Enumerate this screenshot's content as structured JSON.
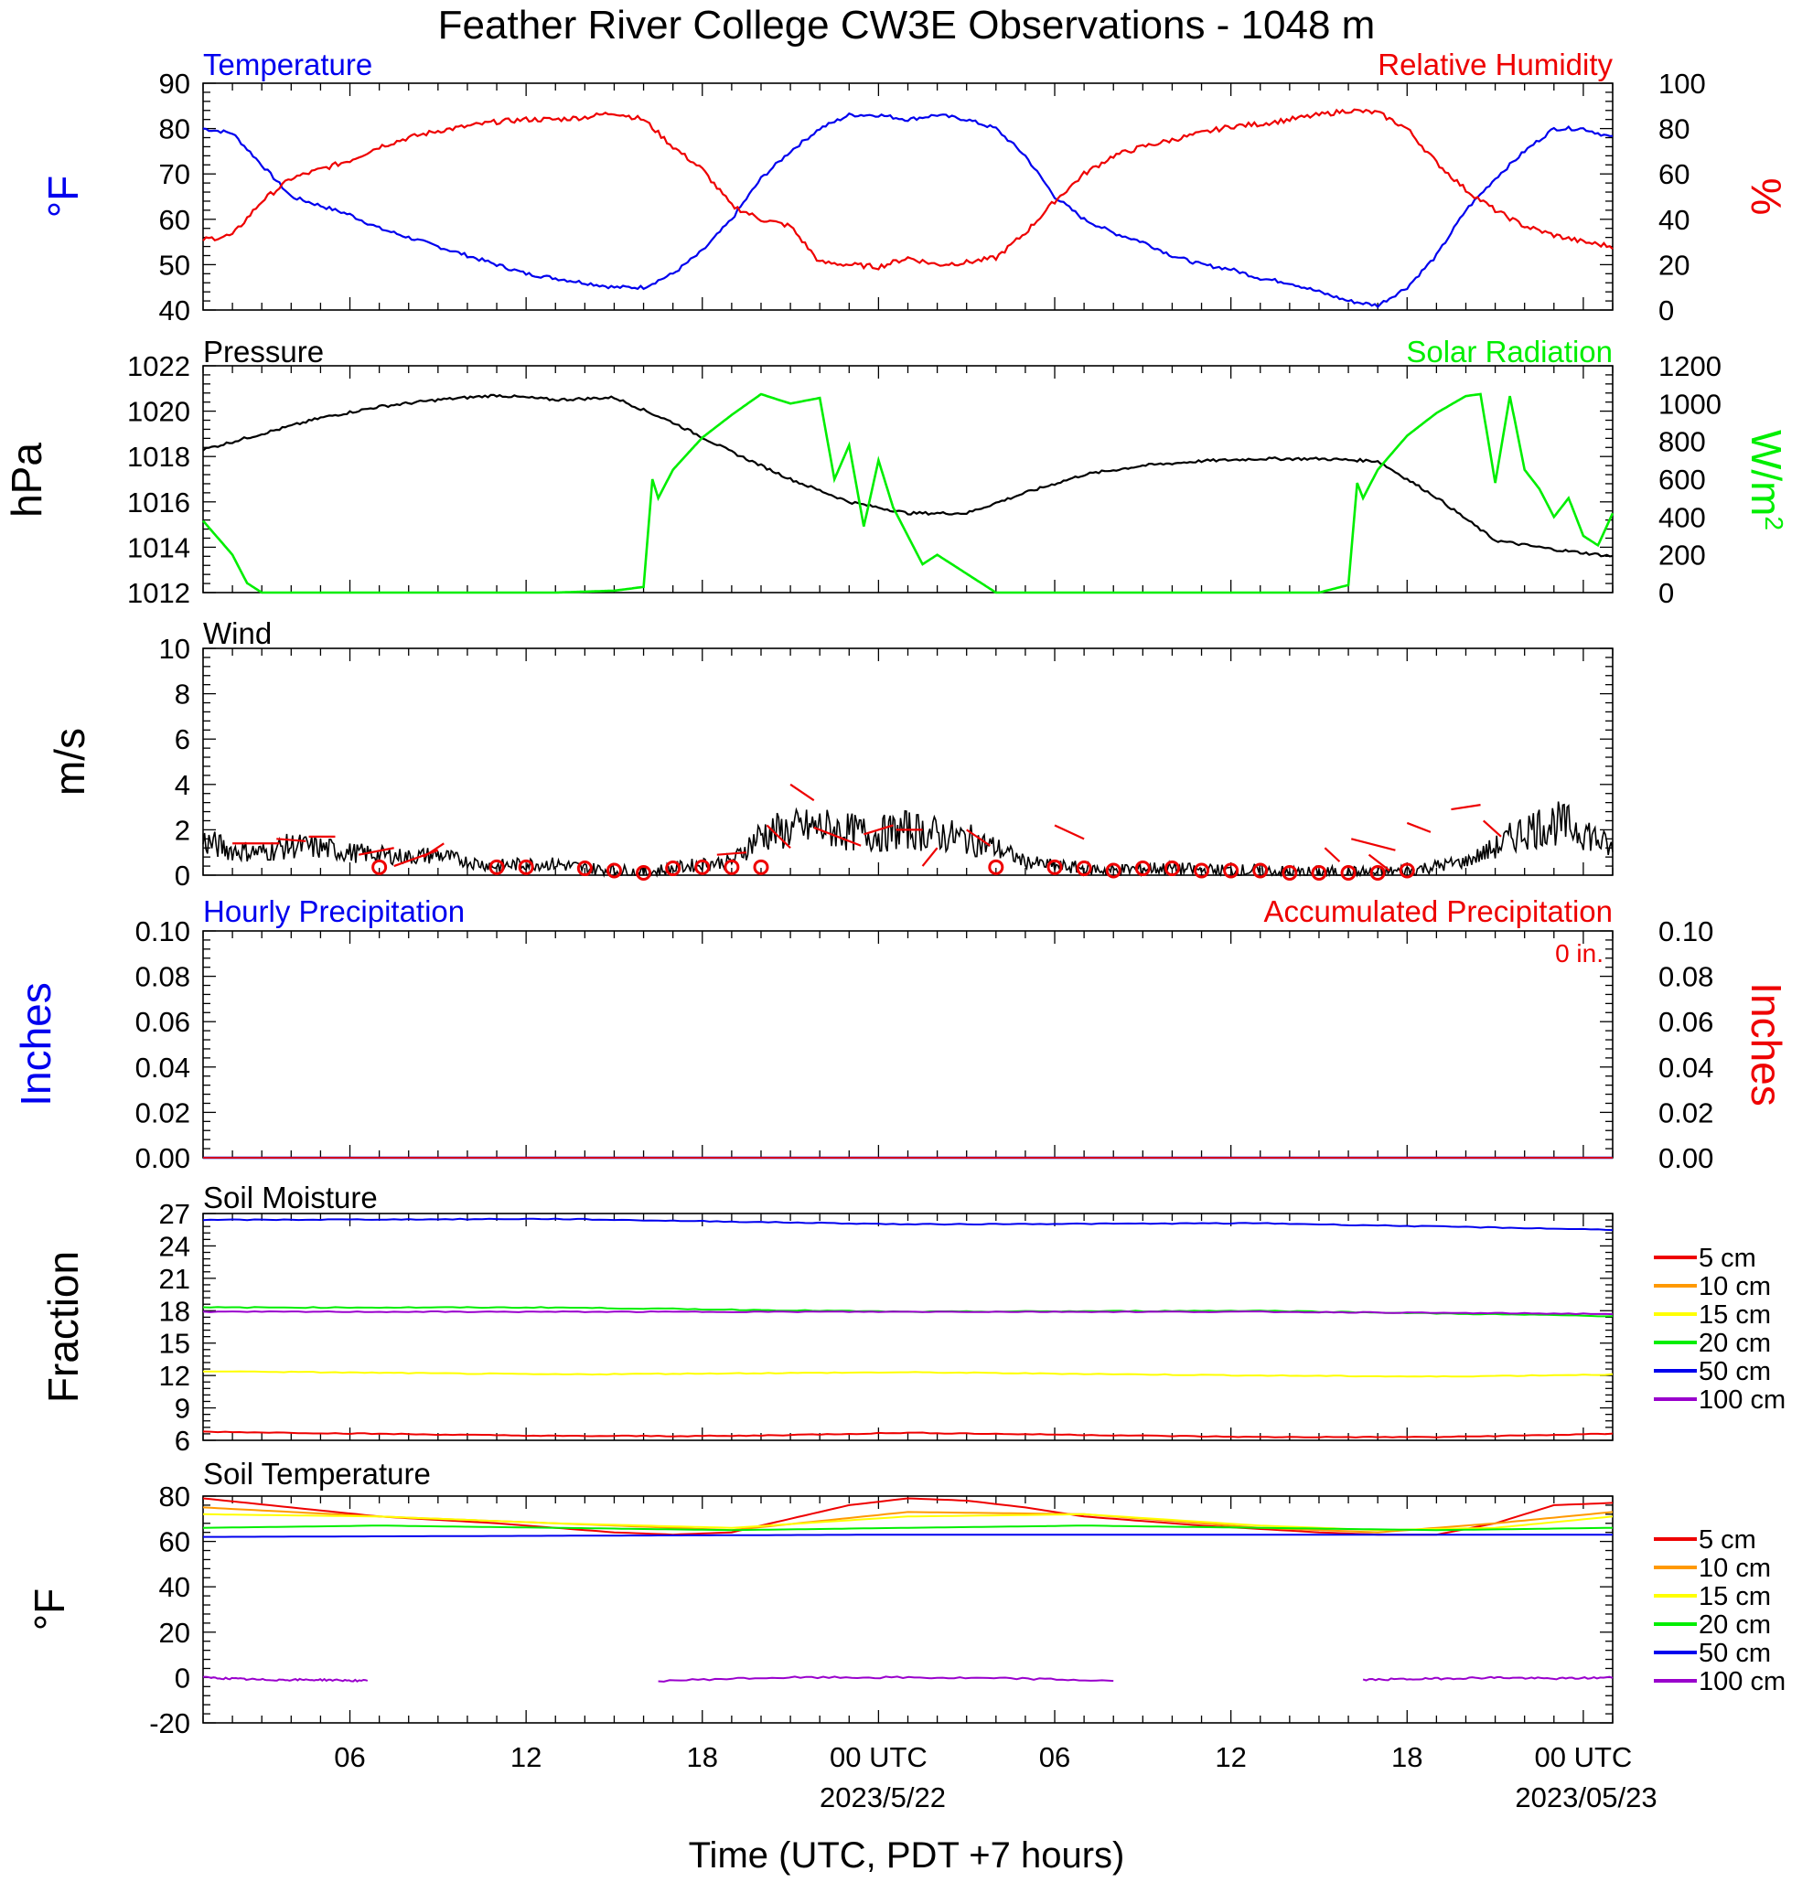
{
  "title": "Feather River College CW3E Observations - 1048 m",
  "colors": {
    "blue": "#0000ee",
    "red": "#ee0000",
    "green": "#00ee00",
    "black": "#000000",
    "soil": [
      "#ee0000",
      "#ff9900",
      "#ffff00",
      "#00ee00",
      "#0000ee",
      "#9900cc"
    ]
  },
  "x_axis": {
    "title": "Time (UTC, PDT +7 hours)",
    "tick_labels": [
      "06",
      "12",
      "18",
      "00 UTC",
      "06",
      "12",
      "18",
      "00 UTC"
    ],
    "date_labels": [
      "2023/5/22",
      "2023/05/23"
    ]
  },
  "panels": {
    "temp_rh": {
      "left_label": "Temperature",
      "right_label": "Relative Humidity",
      "left_unit": "oF",
      "right_unit": "%",
      "left_ticks": [
        "90",
        "80",
        "70",
        "60",
        "50",
        "40"
      ],
      "right_ticks": [
        "100",
        "80",
        "60",
        "40",
        "20",
        "0"
      ]
    },
    "pressure": {
      "left_label": "Pressure",
      "right_label": "Solar Radiation",
      "left_unit": "hPa",
      "right_unit": "W/m2",
      "left_ticks": [
        "1022",
        "1020",
        "1018",
        "1016",
        "1014",
        "1012"
      ],
      "right_ticks": [
        "1200",
        "1000",
        "800",
        "600",
        "400",
        "200",
        "0"
      ]
    },
    "wind": {
      "left_label": "Wind",
      "left_unit": "m/s",
      "left_ticks": [
        "10",
        "8",
        "6",
        "4",
        "2",
        "0"
      ]
    },
    "precip": {
      "left_label": "Hourly Precipitation",
      "right_label": "Accumulated Precipitation",
      "accum_value": "0 in.",
      "left_unit": "Inches",
      "right_unit": "Inches",
      "left_ticks": [
        "0.10",
        "0.08",
        "0.06",
        "0.04",
        "0.02",
        "0.00"
      ],
      "right_ticks": [
        "0.10",
        "0.08",
        "0.06",
        "0.04",
        "0.02",
        "0.00"
      ]
    },
    "soil_moisture": {
      "left_label": "Soil Moisture",
      "left_unit": "Fraction",
      "left_ticks": [
        "27",
        "24",
        "21",
        "18",
        "15",
        "12",
        "9",
        "6"
      ],
      "legend": [
        "5 cm",
        "10 cm",
        "15 cm",
        "20 cm",
        "50 cm",
        "100 cm"
      ]
    },
    "soil_temp": {
      "left_label": "Soil Temperature",
      "left_unit": "oF",
      "left_ticks": [
        "80",
        "60",
        "40",
        "20",
        "0",
        "-20"
      ],
      "legend": [
        "5 cm",
        "10 cm",
        "15 cm",
        "20 cm",
        "50 cm",
        "100 cm"
      ]
    }
  },
  "chart_data": [
    {
      "type": "line",
      "x_unit": "hours since 2023-05-21 01 UTC",
      "xlim": [
        0,
        48
      ],
      "ylim_left": [
        40,
        90
      ],
      "ylim_right": [
        0,
        100
      ],
      "series": [
        {
          "name": "Temperature",
          "axis": "left",
          "x": [
            0,
            1,
            2,
            3,
            4,
            5,
            6,
            7,
            8,
            9,
            10,
            11,
            12,
            13,
            14,
            15,
            16,
            17,
            18,
            19,
            20,
            21,
            22,
            23,
            24,
            25,
            26,
            27,
            28,
            29,
            30,
            31,
            32,
            33,
            34,
            35,
            36,
            37,
            38,
            39,
            40,
            41,
            42,
            43,
            44,
            45,
            46,
            47,
            48
          ],
          "values": [
            80,
            79,
            72,
            65,
            63,
            61,
            58,
            56,
            54,
            52,
            50,
            48,
            47,
            46,
            45,
            45,
            48,
            53,
            60,
            69,
            75,
            80,
            83,
            83,
            82,
            83,
            82,
            80,
            74,
            65,
            60,
            57,
            55,
            52,
            50,
            49,
            47,
            46,
            44,
            42,
            41,
            45,
            52,
            62,
            69,
            75,
            80,
            80,
            78
          ]
        },
        {
          "name": "Relative Humidity",
          "axis": "right",
          "x": [
            0,
            1,
            2,
            3,
            4,
            5,
            6,
            7,
            8,
            9,
            10,
            11,
            12,
            13,
            14,
            15,
            16,
            17,
            18,
            19,
            20,
            21,
            22,
            23,
            24,
            25,
            26,
            27,
            28,
            29,
            30,
            31,
            32,
            33,
            34,
            35,
            36,
            37,
            38,
            39,
            40,
            41,
            42,
            43,
            44,
            45,
            46,
            47,
            48
          ],
          "values": [
            31,
            33,
            48,
            58,
            62,
            66,
            72,
            76,
            79,
            81,
            83,
            84,
            84,
            85,
            87,
            84,
            72,
            62,
            46,
            40,
            37,
            21,
            20,
            19,
            23,
            20,
            21,
            23,
            34,
            48,
            60,
            68,
            72,
            75,
            78,
            81,
            82,
            84,
            86,
            88,
            87,
            80,
            65,
            53,
            44,
            37,
            33,
            30,
            28
          ]
        }
      ]
    },
    {
      "type": "line",
      "x_unit": "hours since 2023-05-21 01 UTC",
      "xlim": [
        0,
        48
      ],
      "ylim_left": [
        1012,
        1022
      ],
      "ylim_right": [
        0,
        1200
      ],
      "series": [
        {
          "name": "Pressure",
          "axis": "left",
          "x": [
            0,
            2,
            4,
            6,
            8,
            10,
            12,
            14,
            16,
            18,
            20,
            22,
            24,
            26,
            28,
            30,
            32,
            34,
            36,
            38,
            40,
            42,
            44,
            46,
            48
          ],
          "values": [
            1018.3,
            1019.0,
            1019.7,
            1020.2,
            1020.5,
            1020.7,
            1020.5,
            1020.6,
            1019.5,
            1018.2,
            1017.0,
            1016.0,
            1015.5,
            1015.5,
            1016.4,
            1017.2,
            1017.6,
            1017.8,
            1017.9,
            1017.9,
            1017.8,
            1016.2,
            1014.3,
            1013.9,
            1013.6
          ]
        },
        {
          "name": "Solar Radiation",
          "axis": "right",
          "x": [
            0,
            1,
            1.5,
            2,
            4,
            8,
            12,
            14,
            15,
            15.3,
            15.5,
            16,
            17,
            18,
            19,
            20,
            21,
            21.5,
            22,
            22.5,
            23,
            23.5,
            24,
            24.5,
            25,
            25.5,
            26,
            27,
            28,
            30,
            34,
            36,
            38,
            39,
            39.3,
            39.5,
            40,
            41,
            42,
            43,
            43.5,
            44,
            44.5,
            45,
            45.5,
            46,
            46.5,
            47,
            47.5,
            48
          ],
          "values": [
            380,
            200,
            50,
            0,
            0,
            0,
            0,
            10,
            30,
            600,
            500,
            650,
            820,
            940,
            1050,
            1000,
            1030,
            600,
            780,
            350,
            700,
            450,
            300,
            150,
            200,
            150,
            100,
            0,
            0,
            0,
            0,
            0,
            0,
            40,
            580,
            500,
            650,
            830,
            950,
            1040,
            1050,
            580,
            1040,
            650,
            550,
            400,
            500,
            300,
            250,
            420
          ]
        }
      ]
    },
    {
      "type": "line",
      "x_unit": "hours since 2023-05-21 01 UTC",
      "xlim": [
        0,
        48
      ],
      "ylim": [
        0,
        10
      ],
      "series": [
        {
          "name": "Wind",
          "x": [
            0,
            1,
            2,
            3,
            4,
            5,
            6,
            7,
            8,
            9,
            10,
            11,
            12,
            13,
            14,
            15,
            16,
            17,
            18,
            19,
            20,
            21,
            22,
            23,
            24,
            25,
            26,
            27,
            28,
            29,
            30,
            31,
            32,
            33,
            34,
            35,
            36,
            37,
            38,
            39,
            40,
            41,
            42,
            43,
            44,
            45,
            46,
            47,
            48
          ],
          "values": [
            1.5,
            1.1,
            1.0,
            1.3,
            1.2,
            1.0,
            0.9,
            0.8,
            0.9,
            0.6,
            0.4,
            0.5,
            0.5,
            0.3,
            0.2,
            0.1,
            0.3,
            0.5,
            0.6,
            1.8,
            2.0,
            2.1,
            1.9,
            1.8,
            2.0,
            1.8,
            1.6,
            1.2,
            0.6,
            0.4,
            0.3,
            0.2,
            0.3,
            0.3,
            0.2,
            0.2,
            0.2,
            0.1,
            0.1,
            0.1,
            0.1,
            0.2,
            0.4,
            0.6,
            1.2,
            2.0,
            2.3,
            2.0,
            1.1
          ]
        }
      ],
      "barb_hours": [
        6,
        10,
        11,
        13,
        14,
        15,
        16,
        17,
        18,
        19,
        27,
        29,
        30,
        31,
        32,
        33,
        34,
        35,
        36,
        37,
        38,
        39,
        40,
        41
      ],
      "markers": "circles"
    },
    {
      "type": "line",
      "x_unit": "hours since 2023-05-21 01 UTC",
      "xlim": [
        0,
        48
      ],
      "ylim": [
        0,
        0.1
      ],
      "series": [
        {
          "name": "Hourly Precipitation",
          "x": [
            0,
            48
          ],
          "values": [
            0,
            0
          ]
        },
        {
          "name": "Accumulated Precipitation",
          "x": [
            0,
            48
          ],
          "values": [
            0,
            0
          ]
        }
      ]
    },
    {
      "type": "line",
      "x_unit": "hours since 2023-05-21 01 UTC",
      "xlim": [
        0,
        48
      ],
      "ylim": [
        6,
        27
      ],
      "series": [
        {
          "name": "5 cm",
          "x": [
            0,
            12,
            18,
            24,
            30,
            36,
            42,
            48
          ],
          "values": [
            6.8,
            6.4,
            6.4,
            6.7,
            6.5,
            6.3,
            6.3,
            6.6
          ]
        },
        {
          "name": "10 cm",
          "x": [
            0,
            48
          ],
          "values": [
            null,
            null
          ]
        },
        {
          "name": "15 cm",
          "x": [
            0,
            12,
            24,
            36,
            42,
            48
          ],
          "values": [
            12.4,
            12.1,
            12.3,
            12.0,
            11.9,
            12.1
          ]
        },
        {
          "name": "20 cm",
          "x": [
            0,
            12,
            24,
            36,
            48
          ],
          "values": [
            18.3,
            18.3,
            17.9,
            18.0,
            17.5
          ]
        },
        {
          "name": "50 cm",
          "x": [
            0,
            12,
            24,
            36,
            48
          ],
          "values": [
            26.4,
            26.5,
            26.0,
            26.1,
            25.5
          ]
        },
        {
          "name": "100 cm",
          "x": [
            0,
            12,
            24,
            36,
            48
          ],
          "values": [
            17.9,
            17.9,
            17.9,
            17.9,
            17.7
          ]
        }
      ]
    },
    {
      "type": "line",
      "x_unit": "hours since 2023-05-21 01 UTC",
      "xlim": [
        0,
        48
      ],
      "ylim": [
        -20,
        80
      ],
      "series": [
        {
          "name": "5 cm",
          "x": [
            0,
            3,
            6,
            10,
            14,
            16,
            18,
            20,
            22,
            24,
            26,
            28,
            30,
            34,
            38,
            40,
            42,
            44,
            46,
            48
          ],
          "values": [
            79,
            75,
            71,
            68,
            64,
            63,
            64,
            70,
            76,
            79,
            78,
            75,
            71,
            67,
            64,
            63,
            63,
            68,
            76,
            77
          ]
        },
        {
          "name": "10 cm",
          "x": [
            0,
            6,
            12,
            18,
            24,
            30,
            36,
            40,
            44,
            48
          ],
          "values": [
            75,
            71,
            68,
            65,
            73,
            72,
            66,
            64,
            68,
            73
          ]
        },
        {
          "name": "15 cm",
          "x": [
            0,
            6,
            12,
            18,
            24,
            30,
            36,
            40,
            44,
            48
          ],
          "values": [
            72,
            71,
            68,
            66,
            71,
            72,
            67,
            65,
            66,
            71
          ]
        },
        {
          "name": "20 cm",
          "x": [
            0,
            6,
            12,
            18,
            24,
            30,
            36,
            42,
            48
          ],
          "values": [
            66,
            67,
            66,
            65,
            66,
            67,
            66,
            65,
            66
          ]
        },
        {
          "name": "50 cm",
          "x": [
            0,
            12,
            24,
            36,
            48
          ],
          "values": [
            62,
            62.5,
            63,
            63,
            63
          ]
        },
        {
          "name": "100 cm",
          "segments": [
            {
              "x": [
                0,
                2,
                4,
                5.6
              ],
              "values": [
                0,
                -1,
                -1,
                -1.5
              ]
            },
            {
              "x": [
                15.5,
                18,
                20,
                24,
                28,
                31
              ],
              "values": [
                -1.5,
                -0.5,
                0,
                0,
                -0.5,
                -1.5
              ]
            },
            {
              "x": [
                39.5,
                42,
                44,
                46,
                48
              ],
              "values": [
                -1,
                -0.5,
                0,
                -0.5,
                0
              ]
            }
          ]
        }
      ]
    }
  ]
}
